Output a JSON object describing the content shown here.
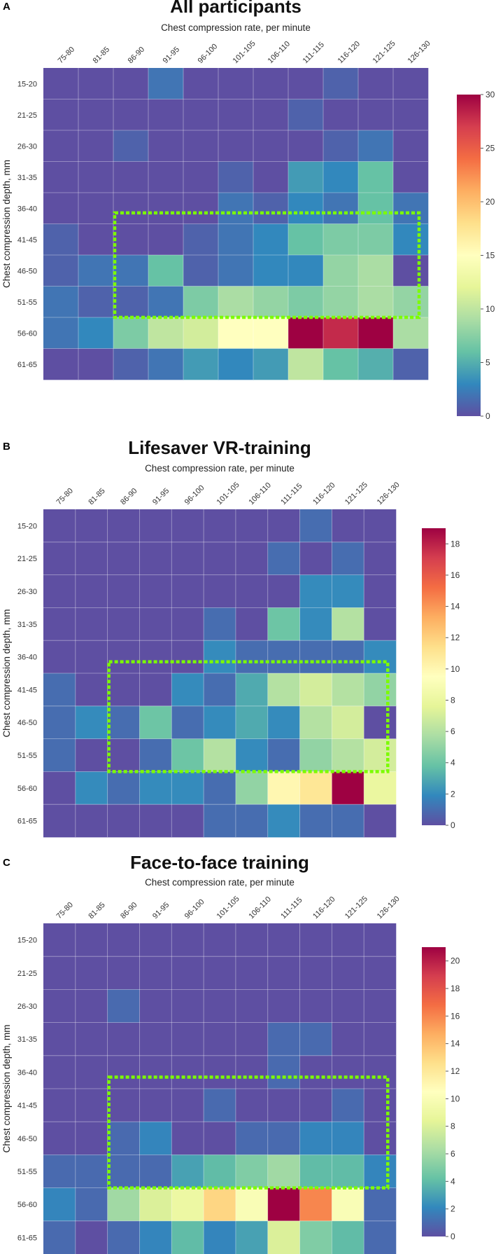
{
  "chart_data": [
    {
      "type": "heatmap",
      "panel_label": "A",
      "title": "All participants",
      "xlabel": "Chest compression rate, per minute",
      "ylabel": "Chest compression depth, mm",
      "x_categories": [
        "75-80",
        "81-85",
        "86-90",
        "91-95",
        "96-100",
        "101-105",
        "106-110",
        "111-115",
        "116-120",
        "121-125",
        "126-130"
      ],
      "y_categories": [
        "15-20",
        "21-25",
        "26-30",
        "31-35",
        "36-40",
        "41-45",
        "46-50",
        "51-55",
        "56-60",
        "61-65"
      ],
      "values": [
        [
          0,
          0,
          0,
          2,
          0,
          0,
          0,
          0,
          1,
          0,
          0
        ],
        [
          0,
          0,
          0,
          0,
          0,
          0,
          0,
          1,
          0,
          0,
          0
        ],
        [
          0,
          0,
          1,
          0,
          0,
          0,
          0,
          0,
          1,
          2,
          0
        ],
        [
          0,
          0,
          0,
          0,
          0,
          1,
          0,
          4,
          3,
          6,
          0
        ],
        [
          0,
          0,
          0,
          0,
          0,
          2,
          1,
          3,
          2,
          6,
          2
        ],
        [
          1,
          0,
          0,
          0,
          1,
          2,
          3,
          6,
          7,
          7,
          3
        ],
        [
          1,
          2,
          2,
          6,
          1,
          2,
          3,
          3,
          8,
          9,
          0
        ],
        [
          2,
          1,
          1,
          2,
          7,
          9,
          8,
          7,
          8,
          9,
          8
        ],
        [
          2,
          3,
          7,
          10,
          11,
          15,
          15,
          30,
          28,
          30,
          9
        ],
        [
          0,
          0,
          1,
          2,
          4,
          3,
          4,
          10,
          6,
          5,
          1
        ]
      ],
      "colorbar_range": [
        0,
        30
      ],
      "colorbar_ticks": [
        "0",
        "5",
        "10",
        "15",
        "20",
        "25",
        "30"
      ],
      "highlight": {
        "x_from": "86-90",
        "x_to": "126-130",
        "y_from": "41-45",
        "y_to": "51-55",
        "color": "#7cfc00",
        "style": "dashed"
      }
    },
    {
      "type": "heatmap",
      "panel_label": "B",
      "title": "Lifesaver VR-training",
      "xlabel": "Chest compression rate, per minute",
      "ylabel": "Chest compression depth, mm",
      "x_categories": [
        "75-80",
        "81-85",
        "86-90",
        "91-95",
        "96-100",
        "101-105",
        "106-110",
        "111-115",
        "116-120",
        "121-125",
        "126-130"
      ],
      "y_categories": [
        "15-20",
        "21-25",
        "26-30",
        "31-35",
        "36-40",
        "41-45",
        "46-50",
        "51-55",
        "56-60",
        "61-65"
      ],
      "values": [
        [
          0,
          0,
          0,
          0,
          0,
          0,
          0,
          0,
          1,
          0,
          0
        ],
        [
          0,
          0,
          0,
          0,
          0,
          0,
          0,
          1,
          0,
          1,
          0
        ],
        [
          0,
          0,
          0,
          0,
          0,
          0,
          0,
          0,
          2,
          2,
          0
        ],
        [
          0,
          0,
          0,
          0,
          0,
          1,
          0,
          4,
          2,
          6,
          0
        ],
        [
          0,
          0,
          0,
          0,
          0,
          2,
          1,
          1,
          1,
          1,
          2
        ],
        [
          1,
          0,
          0,
          0,
          2,
          1,
          3,
          6,
          7,
          6,
          5
        ],
        [
          1,
          2,
          1,
          4,
          1,
          2,
          3,
          2,
          6,
          7,
          0
        ],
        [
          1,
          0,
          0,
          1,
          4,
          6,
          2,
          1,
          5,
          6,
          7
        ],
        [
          0,
          2,
          1,
          2,
          2,
          1,
          5,
          10,
          11,
          19,
          8
        ],
        [
          0,
          0,
          0,
          0,
          0,
          1,
          1,
          2,
          1,
          1,
          0
        ]
      ],
      "colorbar_range": [
        0,
        19
      ],
      "colorbar_ticks": [
        "0",
        "2",
        "4",
        "6",
        "8",
        "10",
        "12",
        "14",
        "16",
        "18"
      ],
      "highlight": {
        "x_from": "86-90",
        "x_to": "126-130",
        "y_from": "41-45",
        "y_to": "51-55",
        "color": "#7cfc00",
        "style": "dashed"
      }
    },
    {
      "type": "heatmap",
      "panel_label": "C",
      "title": "Face-to-face training",
      "xlabel": "Chest compression rate, per minute",
      "ylabel": "Chest compression depth, mm",
      "x_categories": [
        "75-80",
        "81-85",
        "86-90",
        "91-95",
        "96-100",
        "101-105",
        "106-110",
        "111-115",
        "116-120",
        "121-125",
        "126-130"
      ],
      "y_categories": [
        "15-20",
        "21-25",
        "26-30",
        "31-35",
        "36-40",
        "41-45",
        "46-50",
        "51-55",
        "56-60",
        "61-65"
      ],
      "values": [
        [
          0,
          0,
          0,
          0,
          0,
          0,
          0,
          0,
          0,
          0,
          0
        ],
        [
          0,
          0,
          0,
          0,
          0,
          0,
          0,
          0,
          0,
          0,
          0
        ],
        [
          0,
          0,
          1,
          0,
          0,
          0,
          0,
          0,
          0,
          0,
          0
        ],
        [
          0,
          0,
          0,
          0,
          0,
          0,
          0,
          1,
          1,
          0,
          0
        ],
        [
          0,
          0,
          0,
          0,
          0,
          0,
          0,
          1,
          0,
          0,
          0
        ],
        [
          0,
          0,
          0,
          0,
          0,
          1,
          0,
          0,
          0,
          1,
          0
        ],
        [
          0,
          0,
          1,
          2,
          0,
          0,
          1,
          1,
          2,
          2,
          0
        ],
        [
          1,
          1,
          1,
          1,
          3,
          4,
          5,
          6,
          4,
          4,
          2
        ],
        [
          2,
          1,
          6,
          8,
          9,
          13,
          10,
          21,
          16,
          10,
          1
        ],
        [
          1,
          0,
          1,
          2,
          4,
          2,
          3,
          8,
          5,
          4,
          1
        ]
      ],
      "colorbar_range": [
        0,
        21
      ],
      "colorbar_ticks": [
        "0",
        "2",
        "4",
        "6",
        "8",
        "10",
        "12",
        "14",
        "16",
        "18",
        "20"
      ],
      "highlight": {
        "x_from": "86-90",
        "x_to": "126-130",
        "y_from": "41-45",
        "y_to": "51-55",
        "color": "#7cfc00",
        "style": "dashed"
      }
    }
  ],
  "colormap": [
    "#5e4fa2",
    "#3288bd",
    "#66c2a5",
    "#abdda4",
    "#e6f598",
    "#ffffbf",
    "#fee08b",
    "#fdae61",
    "#f46d43",
    "#d53e4f",
    "#9e0142"
  ]
}
